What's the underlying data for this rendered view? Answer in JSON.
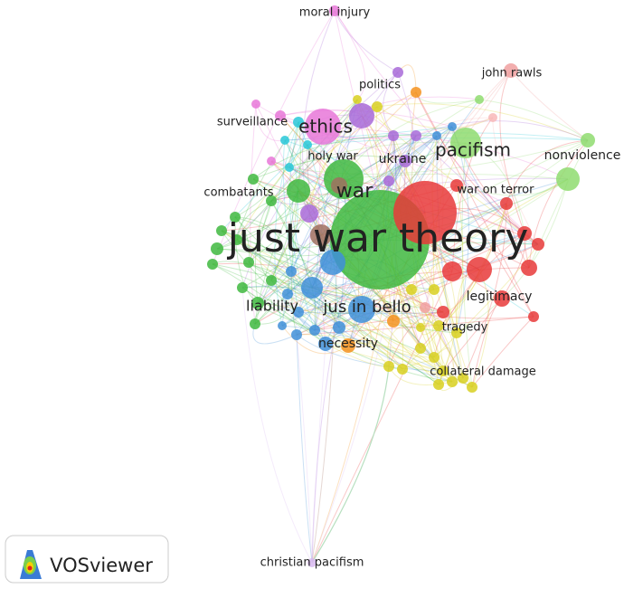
{
  "nodes": [
    {
      "label": "moral injury"
    },
    {
      "label": "john rawls"
    },
    {
      "label": "politics"
    },
    {
      "label": "surveillance"
    },
    {
      "label": "ethics"
    },
    {
      "label": "holy war"
    },
    {
      "label": "ukraine"
    },
    {
      "label": "pacifism"
    },
    {
      "label": "nonviolence"
    },
    {
      "label": "combatants"
    },
    {
      "label": "war"
    },
    {
      "label": "war on terror"
    },
    {
      "label": "just war theory"
    },
    {
      "label": "liability"
    },
    {
      "label": "jus in bello"
    },
    {
      "label": "legitimacy"
    },
    {
      "label": "tragedy"
    },
    {
      "label": "necessity"
    },
    {
      "label": "collateral damage"
    },
    {
      "label": "christian pacifism"
    }
  ],
  "logo": {
    "label": "VOSviewer"
  }
}
